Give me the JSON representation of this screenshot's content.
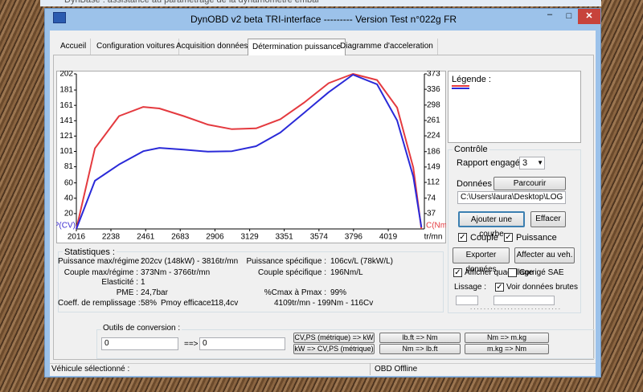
{
  "background_window": {
    "title": "DynBase : assistance au paramétrage de la dynamomètre embar"
  },
  "window": {
    "title": "DynOBD v2 beta TRI-interface --------- Version Test n°022g FR"
  },
  "tabs": [
    "Accueil",
    "Configuration voitures",
    "Acquisition données",
    "Détermination puissance",
    "Diagramme d'acceleration"
  ],
  "active_tab": 3,
  "chart_data": {
    "type": "line",
    "y_label": "P(CV)",
    "y2_label": "C(Nm)",
    "x_label": "tr/mn",
    "x": [
      2016,
      2135,
      2290,
      2446,
      2549,
      2705,
      2860,
      3015,
      3170,
      3326,
      3481,
      3636,
      3792,
      3947,
      4076,
      4180,
      4232
    ],
    "series": [
      {
        "color": "#e43a3f",
        "axis": "y",
        "values": [
          0,
          105,
          147,
          159,
          157,
          147,
          136,
          130,
          131,
          143,
          165,
          190,
          202,
          194,
          158,
          80,
          0
        ]
      },
      {
        "color": "#2a2ad8",
        "axis": "y2",
        "values": [
          0,
          116,
          155,
          187,
          195,
          191,
          186,
          187,
          199,
          232,
          280,
          329,
          371,
          348,
          261,
          126,
          4
        ]
      }
    ],
    "xlim": [
      2016,
      4251
    ],
    "xticks": [
      2016,
      2238,
      2461,
      2683,
      2906,
      3129,
      3351,
      3574,
      3796,
      4019
    ],
    "ylim": [
      0,
      202
    ],
    "yticks": [
      20,
      40,
      60,
      81,
      101,
      121,
      141,
      161,
      181,
      202
    ],
    "y2lim": [
      0,
      373
    ],
    "y2ticks": [
      37,
      74,
      112,
      149,
      186,
      224,
      261,
      298,
      336,
      373
    ],
    "y_label_color": "#3a2ad0",
    "y2_label_color": "#e43a3f",
    "grid": false
  },
  "legend": {
    "title": "Légende :"
  },
  "stats": {
    "title": "Statistiques :",
    "puissance_max": [
      "Puissance max/régime :",
      "202cv (148kW) - 3816tr/mn"
    ],
    "puissance_spec": [
      "Puissance spécifique :",
      "106cv/L (78kW/L)"
    ],
    "couple_max": [
      "Couple max/régime :",
      "373Nm - 3766tr/mn"
    ],
    "couple_spec": [
      "Couple spécifique :",
      "196Nm/L"
    ],
    "elasticite": [
      "Elasticité :",
      "1"
    ],
    "pme": [
      "PME :",
      "24,7bar"
    ],
    "cmax": [
      "%Cmax à Pmax :",
      "99%"
    ],
    "remplissage": [
      "Coeff. de remplissage :",
      "58%"
    ],
    "pmoy": [
      "Pmoy efficace :",
      "118,4cv"
    ],
    "point": "4109tr/mn - 199Nm - 116Cv"
  },
  "controls": {
    "title": "Contrôle",
    "rapport_label": "Rapport engagé :",
    "rapport": "3",
    "donnees_label": "Données :",
    "parcourir": "Parcourir",
    "path": "C:\\Users\\laura\\Desktop\\LOG MK-",
    "ajouter": "Ajouter une courbe",
    "effacer": "Effacer",
    "couple": {
      "label": "Couple",
      "checked": true
    },
    "puissance": {
      "label": "Puissance",
      "checked": true
    },
    "exporter": "Exporter données",
    "affecter": "Affecter au veh.",
    "quadrillage": {
      "label": "Afficher quadrillage",
      "checked": true
    },
    "sae": {
      "label": "Corrigé SAE",
      "checked": false
    },
    "lissage": "Lissage :",
    "brutes": {
      "label": "Voir données brutes",
      "checked": true
    }
  },
  "conversion": {
    "title": "Outils de conversion :",
    "input": "0",
    "arrow": "==>",
    "output": "0",
    "buttons": [
      "CV,PS (métrique) => kW",
      "kW => CV,PS (métrique)",
      "lb.ft => Nm",
      "Nm => lb.ft",
      "Nm => m.kg",
      "m.kg => Nm"
    ]
  },
  "status": {
    "vehicle": "Véhicule sélectionné :",
    "obd": "OBD Offline"
  }
}
